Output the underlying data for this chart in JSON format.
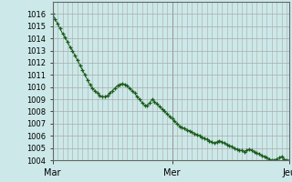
{
  "background_color": "#cce8e8",
  "plot_bg_color": "#cce8e8",
  "grid_major_color": "#aaaaaa",
  "grid_minor_color": "#cccccc",
  "line_color": "#1a5c1a",
  "marker_color": "#1a5c1a",
  "ylim": [
    1004,
    1017
  ],
  "yticks": [
    1004,
    1005,
    1006,
    1007,
    1008,
    1009,
    1010,
    1011,
    1012,
    1013,
    1014,
    1015,
    1016
  ],
  "xtick_labels": [
    "Mar",
    "Mer",
    "Jeu"
  ],
  "xtick_positions": [
    0,
    48,
    95
  ],
  "n_points": 96,
  "y_values": [
    1016.0,
    1015.6,
    1015.2,
    1014.8,
    1014.4,
    1014.1,
    1013.7,
    1013.3,
    1013.0,
    1012.6,
    1012.2,
    1011.8,
    1011.4,
    1011.0,
    1010.6,
    1010.2,
    1009.9,
    1009.7,
    1009.5,
    1009.3,
    1009.2,
    1009.2,
    1009.3,
    1009.5,
    1009.7,
    1009.9,
    1010.1,
    1010.2,
    1010.3,
    1010.2,
    1010.1,
    1009.9,
    1009.7,
    1009.5,
    1009.2,
    1009.0,
    1008.7,
    1008.5,
    1008.5,
    1008.7,
    1009.0,
    1008.8,
    1008.6,
    1008.4,
    1008.2,
    1008.0,
    1007.8,
    1007.6,
    1007.4,
    1007.2,
    1007.0,
    1006.8,
    1006.7,
    1006.6,
    1006.5,
    1006.4,
    1006.3,
    1006.2,
    1006.1,
    1006.0,
    1005.9,
    1005.8,
    1005.7,
    1005.6,
    1005.5,
    1005.4,
    1005.5,
    1005.6,
    1005.5,
    1005.4,
    1005.3,
    1005.2,
    1005.1,
    1005.0,
    1004.9,
    1004.8,
    1004.8,
    1004.7,
    1004.8,
    1004.9,
    1004.8,
    1004.7,
    1004.6,
    1004.5,
    1004.4,
    1004.3,
    1004.2,
    1004.1,
    1004.0,
    1004.0,
    1004.1,
    1004.2,
    1004.3,
    1004.1,
    1004.0,
    1004.0
  ],
  "ylabel_fontsize": 6,
  "xlabel_fontsize": 7
}
